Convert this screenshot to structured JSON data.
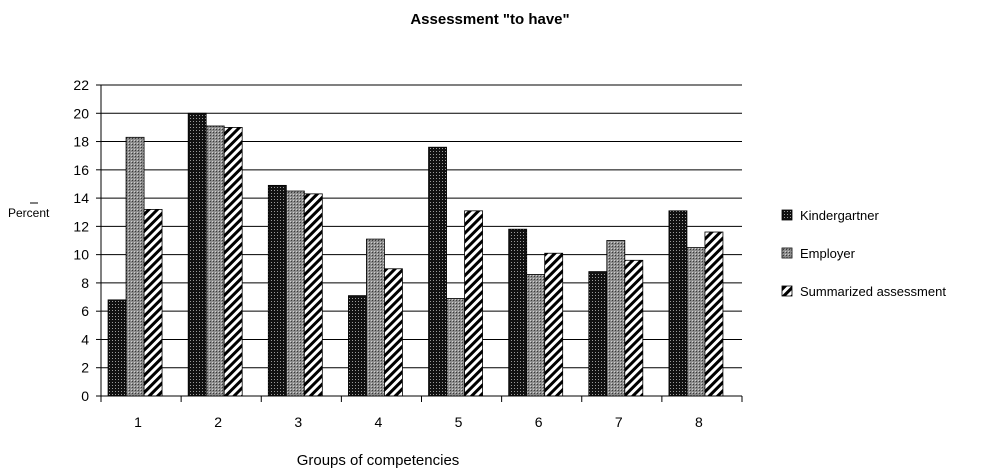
{
  "chart_data": {
    "type": "bar",
    "title": "Assessment \"to have\"",
    "xlabel": "Groups of competencies",
    "ylabel": "Percent",
    "ylim": [
      0,
      22
    ],
    "yticks": [
      0,
      2,
      4,
      6,
      8,
      10,
      12,
      14,
      16,
      18,
      20,
      22
    ],
    "categories": [
      "1",
      "2",
      "3",
      "4",
      "5",
      "6",
      "7",
      "8"
    ],
    "grid": "horizontal",
    "legend_position": "right",
    "series": [
      {
        "name": "Kindergartner",
        "pattern": "dense-dots",
        "color": "#111111",
        "values": [
          6.8,
          20.0,
          14.9,
          7.1,
          17.6,
          11.8,
          8.8,
          13.1
        ]
      },
      {
        "name": "Employer",
        "pattern": "grey-dots",
        "color": "#8a8a8a",
        "values": [
          18.3,
          19.1,
          14.5,
          11.1,
          6.9,
          8.6,
          11.0,
          10.5
        ]
      },
      {
        "name": "Summarized assessment",
        "pattern": "diagonal-stripes",
        "color": "#000000",
        "values": [
          13.2,
          19.0,
          14.3,
          9.0,
          13.1,
          10.1,
          9.6,
          11.6
        ]
      }
    ]
  }
}
